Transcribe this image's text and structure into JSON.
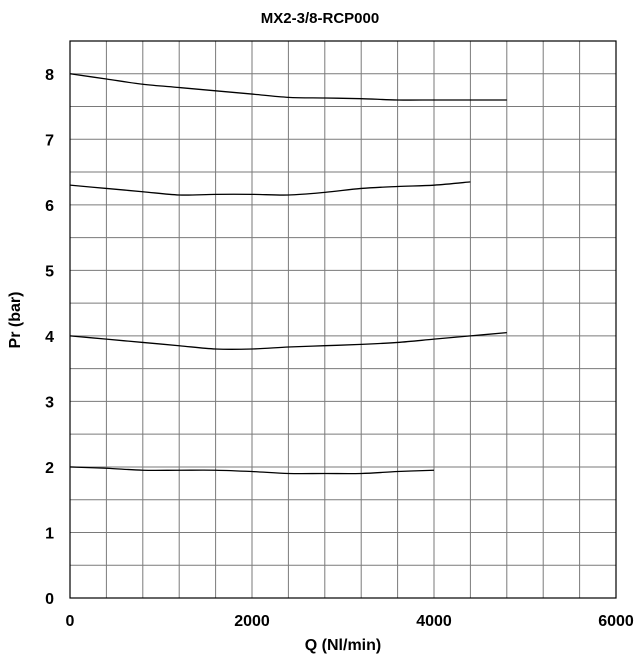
{
  "chart_data": {
    "type": "line",
    "title": "MX2-3/8-RCP000",
    "xlabel": "Q (Nl/min)",
    "ylabel": "Pr (bar)",
    "xlim": [
      0,
      6000
    ],
    "ylim": [
      0,
      8.5
    ],
    "x_ticks": [
      "0",
      "2000",
      "4000",
      "6000"
    ],
    "y_ticks": [
      "0",
      "1",
      "2",
      "3",
      "4",
      "5",
      "6",
      "7",
      "8"
    ],
    "grid": true,
    "series": [
      {
        "color": "#000000",
        "x": [
          0,
          400,
          800,
          1200,
          1600,
          2000,
          2400,
          2800,
          3200,
          3600,
          4000,
          4400,
          4800
        ],
        "y": [
          8.0,
          7.92,
          7.84,
          7.79,
          7.74,
          7.69,
          7.64,
          7.63,
          7.62,
          7.6,
          7.6,
          7.6,
          7.6
        ]
      },
      {
        "color": "#000000",
        "x": [
          0,
          400,
          800,
          1200,
          1600,
          2000,
          2400,
          2800,
          3200,
          3600,
          4000,
          4400
        ],
        "y": [
          6.3,
          6.25,
          6.2,
          6.15,
          6.16,
          6.16,
          6.15,
          6.19,
          6.25,
          6.28,
          6.3,
          6.35
        ]
      },
      {
        "color": "#000000",
        "x": [
          0,
          400,
          800,
          1200,
          1600,
          2000,
          2400,
          2800,
          3200,
          3600,
          4000,
          4400,
          4800
        ],
        "y": [
          4.0,
          3.95,
          3.9,
          3.85,
          3.8,
          3.8,
          3.83,
          3.85,
          3.87,
          3.9,
          3.95,
          4.0,
          4.05
        ]
      },
      {
        "color": "#000000",
        "x": [
          0,
          400,
          800,
          1200,
          1600,
          2000,
          2400,
          2800,
          3200,
          3600,
          4000
        ],
        "y": [
          2.0,
          1.98,
          1.95,
          1.95,
          1.95,
          1.93,
          1.9,
          1.9,
          1.9,
          1.93,
          1.95
        ]
      }
    ]
  }
}
